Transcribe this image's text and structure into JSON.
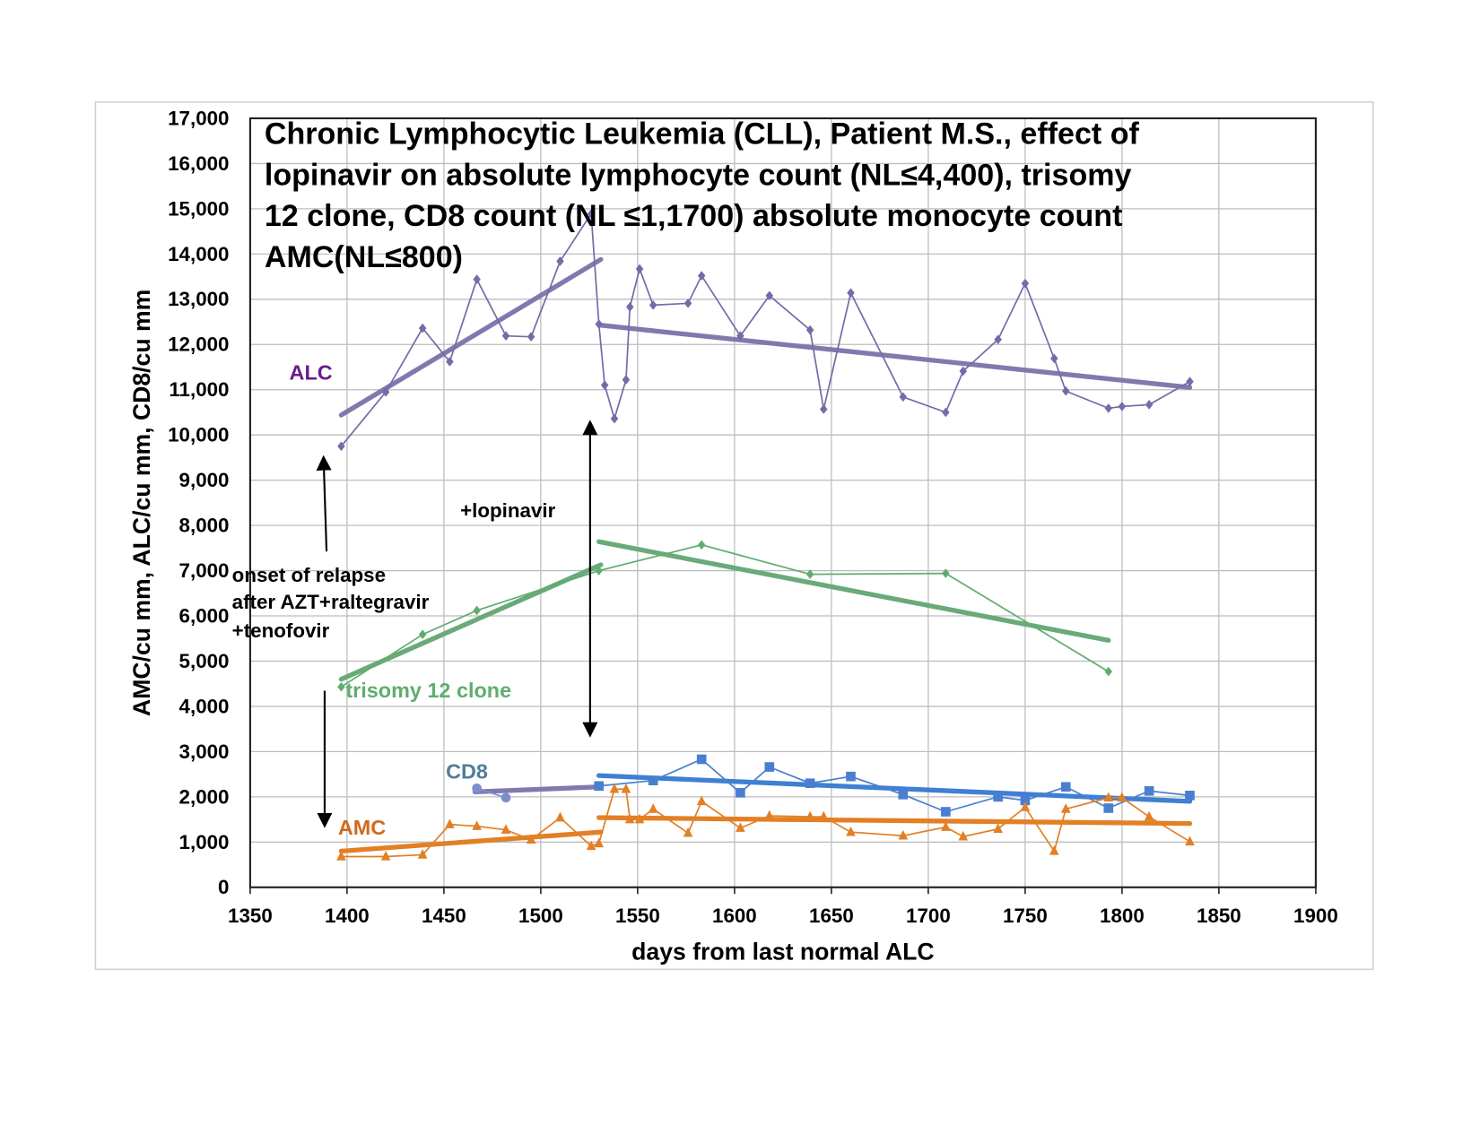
{
  "chart_data": {
    "type": "line",
    "title_lines": [
      "Chronic Lymphocytic Leukemia (CLL), Patient M.S., effect of",
      "lopinavir on absolute lymphocyte count (NL≤4,400), trisomy",
      "12 clone, CD8 count (NL ≤1,1700) absolute monocyte count",
      "AMC(NL≤800)"
    ],
    "xlabel": "days from last normal ALC",
    "ylabel": "AMC/cu mm, ALC/cu mm, CD8/cu mm",
    "xlim": [
      1350,
      1900
    ],
    "ylim": [
      0,
      17000
    ],
    "x_ticks": [
      1350,
      1400,
      1450,
      1500,
      1550,
      1600,
      1650,
      1700,
      1750,
      1800,
      1850,
      1900
    ],
    "x_tick_labels": [
      "1350",
      "1400",
      "1450",
      "1500",
      "1550",
      "1600",
      "1650",
      "1700",
      "1750",
      "1800",
      "1850",
      "1900"
    ],
    "y_ticks": [
      0,
      1000,
      2000,
      3000,
      4000,
      5000,
      6000,
      7000,
      8000,
      9000,
      10000,
      11000,
      12000,
      13000,
      14000,
      15000,
      16000,
      17000
    ],
    "y_tick_labels": [
      "0",
      "1,000",
      "2,000",
      "3,000",
      "4,000",
      "5,000",
      "6,000",
      "7,000",
      "8,000",
      "9,000",
      "10,000",
      "11,000",
      "12,000",
      "13,000",
      "14,000",
      "15,000",
      "16,000",
      "17,000"
    ],
    "grid": true,
    "series": [
      {
        "name": "ALC",
        "label": "ALC",
        "color": "#7a68a8",
        "label_color": "#6a1b8a",
        "marker": "diamond",
        "x": [
          1397,
          1420,
          1439,
          1453,
          1467,
          1482,
          1495,
          1510,
          1526,
          1530,
          1533,
          1538,
          1544,
          1546,
          1551,
          1558,
          1576,
          1583,
          1603,
          1618,
          1639,
          1646,
          1660,
          1687,
          1709,
          1718,
          1736,
          1750,
          1765,
          1771,
          1793,
          1800,
          1814,
          1835
        ],
        "y": [
          9750,
          10950,
          12360,
          11620,
          13440,
          12190,
          12170,
          13840,
          14890,
          12450,
          11100,
          10360,
          11220,
          12830,
          13670,
          12870,
          12910,
          13520,
          12190,
          13080,
          12320,
          10570,
          13140,
          10840,
          10500,
          11410,
          12110,
          13350,
          11690,
          10970,
          10590,
          10630,
          10670,
          11180
        ]
      },
      {
        "name": "trisomy 12 clone",
        "label": "trisomy 12 clone",
        "color": "#5fad6e",
        "label_color": "#5fad6e",
        "marker": "diamond",
        "x": [
          1397,
          1439,
          1467,
          1530,
          1583,
          1639,
          1709,
          1793
        ],
        "y": [
          4430,
          5590,
          6120,
          7000,
          7570,
          6920,
          6940,
          4770
        ]
      },
      {
        "name": "CD8 (pre)",
        "label": "",
        "color": "#7b8fcf",
        "marker": "circle",
        "x": [
          1467,
          1482
        ],
        "y": [
          2190,
          1980
        ]
      },
      {
        "name": "CD8",
        "label": "CD8",
        "color": "#4a7fd0",
        "label_color": "#4f7f96",
        "marker": "square",
        "x": [
          1530,
          1558,
          1583,
          1603,
          1618,
          1639,
          1660,
          1687,
          1709,
          1736,
          1750,
          1771,
          1793,
          1814,
          1835
        ],
        "y": [
          2240,
          2360,
          2830,
          2090,
          2660,
          2300,
          2450,
          2050,
          1670,
          2000,
          1920,
          2220,
          1750,
          2130,
          2030
        ]
      },
      {
        "name": "AMC",
        "label": "AMC",
        "color": "#e37f24",
        "label_color": "#d2691e",
        "marker": "triangle",
        "x": [
          1397,
          1420,
          1439,
          1453,
          1467,
          1482,
          1495,
          1510,
          1526,
          1530,
          1538,
          1544,
          1546,
          1551,
          1558,
          1576,
          1583,
          1603,
          1618,
          1639,
          1646,
          1660,
          1687,
          1709,
          1718,
          1736,
          1750,
          1765,
          1771,
          1793,
          1800,
          1814,
          1835
        ],
        "y": [
          680,
          680,
          720,
          1390,
          1350,
          1270,
          1050,
          1540,
          910,
          970,
          2170,
          2170,
          1500,
          1500,
          1730,
          1200,
          1900,
          1310,
          1580,
          1560,
          1560,
          1220,
          1140,
          1330,
          1120,
          1290,
          1770,
          800,
          1730,
          1980,
          1980,
          1560,
          1010
        ]
      }
    ],
    "trendlines": [
      {
        "name": "ALC trend pre",
        "color": "#7f7aae",
        "x": [
          1397,
          1531
        ],
        "y": [
          10440,
          13880
        ]
      },
      {
        "name": "ALC trend post",
        "color": "#7f7aae",
        "x": [
          1530,
          1835
        ],
        "y": [
          12430,
          11050
        ]
      },
      {
        "name": "trisomy trend pre",
        "color": "#6aaa78",
        "x": [
          1397,
          1531
        ],
        "y": [
          4600,
          7130
        ]
      },
      {
        "name": "trisomy trend post",
        "color": "#6aaa78",
        "x": [
          1530,
          1793
        ],
        "y": [
          7640,
          5460
        ]
      },
      {
        "name": "CD8 trend pre",
        "color": "#7f7aae",
        "x": [
          1466,
          1530
        ],
        "y": [
          2110,
          2220
        ]
      },
      {
        "name": "CD8 trend post",
        "color": "#3f7fd4",
        "x": [
          1530,
          1835
        ],
        "y": [
          2470,
          1900
        ]
      },
      {
        "name": "AMC trend pre",
        "color": "#e37f24",
        "x": [
          1397,
          1531
        ],
        "y": [
          800,
          1220
        ]
      },
      {
        "name": "AMC trend post",
        "color": "#e37f24",
        "x": [
          1530,
          1835
        ],
        "y": [
          1540,
          1410
        ]
      }
    ],
    "annotations": {
      "lopinavir": "+lopinavir",
      "relapse_lines": [
        "onset of relapse",
        "after AZT+raltegravir",
        "+tenofovir"
      ]
    }
  }
}
